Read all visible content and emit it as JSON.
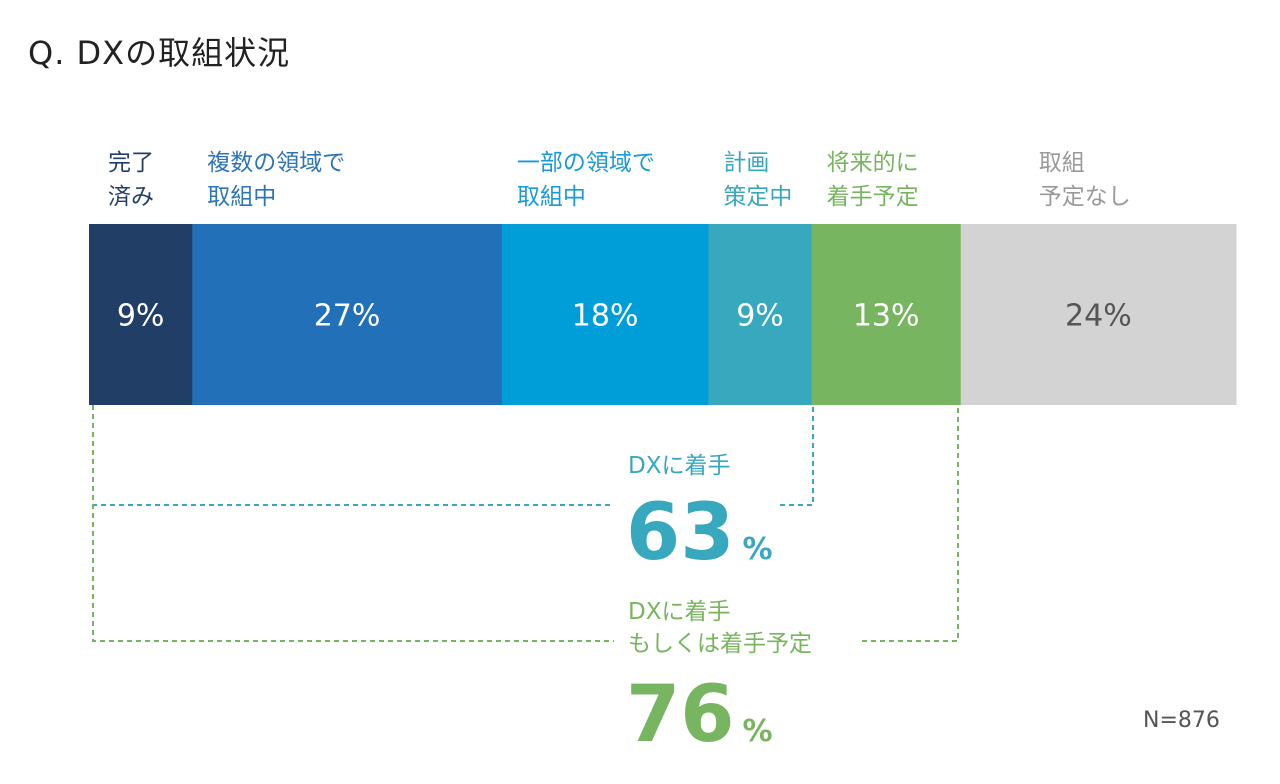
{
  "title": "Q. DXの取組状況",
  "chart_data": {
    "type": "bar",
    "orientation": "horizontal-stacked-100",
    "categories": [
      "完了\n済み",
      "複数の領域で\n取組中",
      "一部の領域で\n取組中",
      "計画\n策定中",
      "将来的に\n着手予定",
      "取組\n予定なし"
    ],
    "values": [
      9,
      27,
      18,
      9,
      13,
      24
    ],
    "data_labels": [
      "9%",
      "27%",
      "18%",
      "9%",
      "13%",
      "24%"
    ],
    "colors": [
      "#213f66",
      "#2270b8",
      "#009ed8",
      "#38a8be",
      "#78b560",
      "#d3d3d3"
    ],
    "label_colors": [
      "#213f66",
      "#2e75b6",
      "#1a9ad6",
      "#38a8be",
      "#78b560",
      "#9a9a9a"
    ],
    "value_label_colors": [
      "#ffffff",
      "#ffffff",
      "#ffffff",
      "#ffffff",
      "#ffffff",
      "#555555"
    ]
  },
  "callouts": [
    {
      "label": "DXに着手",
      "value": "63",
      "unit": "%",
      "color": "#38a8be"
    },
    {
      "label": "DXに着手\nもしくは着手予定",
      "value": "76",
      "unit": "%",
      "color": "#78b560"
    }
  ],
  "n_label": "N=876"
}
